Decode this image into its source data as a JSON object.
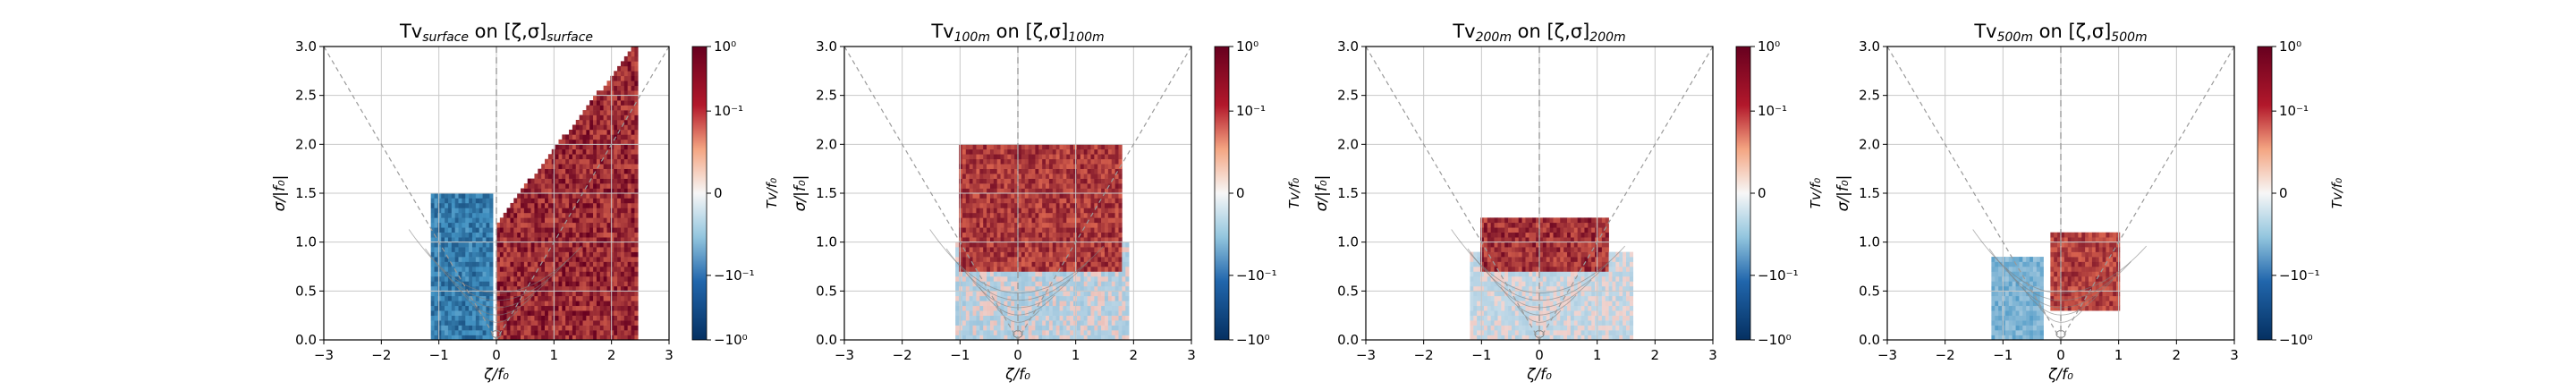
{
  "figure": {
    "colors": {
      "neg_dark": "#053061",
      "neg_mid": "#4393c3",
      "neutral": "#f7f7f7",
      "pos_mid": "#d6604d",
      "pos_dark": "#67001f",
      "grid": "#c8c8c8",
      "guide": "#9a9a9a",
      "contour": "#808080"
    }
  },
  "chart_data": [
    {
      "type": "heatmap",
      "title": {
        "main": "Tv",
        "sub": "surface",
        "mid": " on [ζ,σ]",
        "sub2": "surface"
      },
      "xlabel": "ζ/f₀",
      "ylabel": "σ/|f₀|",
      "xlim": [
        -3,
        3
      ],
      "ylim": [
        0,
        3
      ],
      "xticks": [
        "−3",
        "−2",
        "−1",
        "0",
        "1",
        "2",
        "3"
      ],
      "yticks": [
        "0.0",
        "0.5",
        "1.0",
        "1.5",
        "2.0",
        "2.5",
        "3.0"
      ],
      "grid": true,
      "colorbar": {
        "label": "Tv/f₀",
        "scale": "symlog",
        "ticks": [
          "10⁰",
          "10⁻¹",
          "0",
          "−10⁻¹",
          "−10⁰"
        ]
      },
      "regions": [
        {
          "sign": "negative",
          "zeta_range": [
            -1.15,
            -0.05
          ],
          "sigma_range": [
            0.0,
            1.5
          ],
          "intensity": 0.8
        },
        {
          "sign": "positive",
          "zeta_range": [
            0.0,
            2.45
          ],
          "sigma_range": [
            0.0,
            3.0
          ],
          "intensity": 1.0,
          "upper_edge": "sigma = 1.2 + 0.75*zeta"
        }
      ]
    },
    {
      "type": "heatmap",
      "title": {
        "main": "Tv",
        "sub": "100m",
        "mid": " on [ζ,σ]",
        "sub2": "100m"
      },
      "xlabel": "ζ/f₀",
      "ylabel": "σ/|f₀|",
      "xlim": [
        -3,
        3
      ],
      "ylim": [
        0,
        3
      ],
      "xticks": [
        "−3",
        "−2",
        "−1",
        "0",
        "1",
        "2",
        "3"
      ],
      "yticks": [
        "0.0",
        "0.5",
        "1.0",
        "1.5",
        "2.0",
        "2.5",
        "3.0"
      ],
      "grid": true,
      "colorbar": {
        "label": "Tv/f₀",
        "scale": "symlog",
        "ticks": [
          "10⁰",
          "10⁻¹",
          "0",
          "−10⁻¹",
          "−10⁰"
        ]
      },
      "regions": [
        {
          "sign": "positive",
          "zeta_range": [
            -1.0,
            1.8
          ],
          "sigma_range": [
            0.7,
            2.0
          ],
          "intensity": 0.9
        },
        {
          "sign": "mixed-weak",
          "zeta_range": [
            -1.1,
            1.9
          ],
          "sigma_range": [
            0.0,
            1.0
          ],
          "intensity": 0.25
        }
      ]
    },
    {
      "type": "heatmap",
      "title": {
        "main": "Tv",
        "sub": "200m",
        "mid": " on [ζ,σ]",
        "sub2": "200m"
      },
      "xlabel": "ζ/f₀",
      "ylabel": "σ/|f₀|",
      "xlim": [
        -3,
        3
      ],
      "ylim": [
        0,
        3
      ],
      "xticks": [
        "−3",
        "−2",
        "−1",
        "0",
        "1",
        "2",
        "3"
      ],
      "yticks": [
        "0.0",
        "0.5",
        "1.0",
        "1.5",
        "2.0",
        "2.5",
        "3.0"
      ],
      "grid": true,
      "colorbar": {
        "label": "Tv/f₀",
        "scale": "symlog",
        "ticks": [
          "10⁰",
          "10⁻¹",
          "0",
          "−10⁻¹",
          "−10⁰"
        ]
      },
      "regions": [
        {
          "sign": "positive",
          "zeta_range": [
            -1.0,
            1.2
          ],
          "sigma_range": [
            0.7,
            1.25
          ],
          "intensity": 0.95
        },
        {
          "sign": "mixed-weak",
          "zeta_range": [
            -1.2,
            1.6
          ],
          "sigma_range": [
            0.0,
            0.9
          ],
          "intensity": 0.2
        }
      ]
    },
    {
      "type": "heatmap",
      "title": {
        "main": "Tv",
        "sub": "500m",
        "mid": " on [ζ,σ]",
        "sub2": "500m"
      },
      "xlabel": "ζ/f₀",
      "ylabel": "σ/|f₀|",
      "xlim": [
        -3,
        3
      ],
      "ylim": [
        0,
        3
      ],
      "xticks": [
        "−3",
        "−2",
        "−1",
        "0",
        "1",
        "2",
        "3"
      ],
      "yticks": [
        "0.0",
        "0.5",
        "1.0",
        "1.5",
        "2.0",
        "2.5",
        "3.0"
      ],
      "grid": true,
      "colorbar": {
        "label": "Tv/f₀",
        "scale": "symlog",
        "ticks": [
          "10⁰",
          "10⁻¹",
          "0",
          "−10⁻¹",
          "−10⁰"
        ]
      },
      "regions": [
        {
          "sign": "positive",
          "zeta_range": [
            -0.2,
            1.0
          ],
          "sigma_range": [
            0.3,
            1.1
          ],
          "intensity": 0.85
        },
        {
          "sign": "negative",
          "zeta_range": [
            -1.2,
            -0.3
          ],
          "sigma_range": [
            0.0,
            0.85
          ],
          "intensity": 0.45
        }
      ]
    }
  ]
}
